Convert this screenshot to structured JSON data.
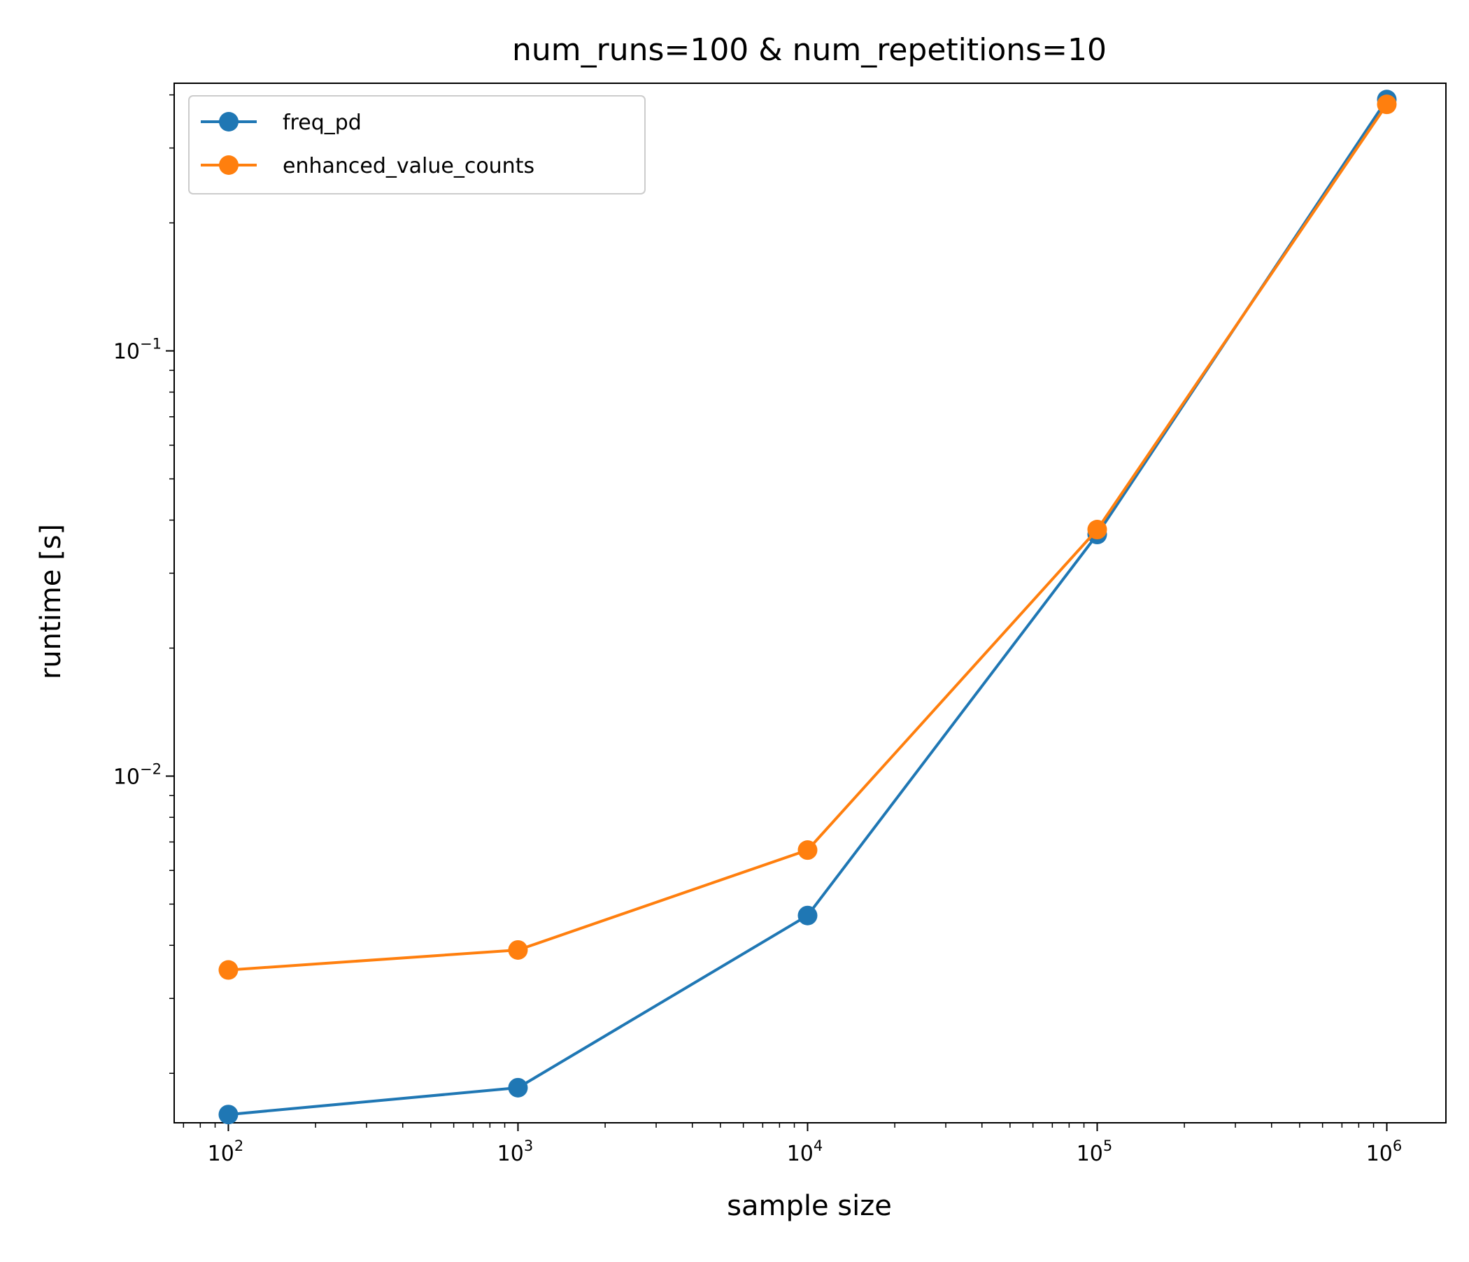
{
  "chart_data": {
    "type": "line",
    "title": "num_runs=100  &  num_repetitions=10",
    "xlabel": "sample size",
    "ylabel": "runtime [s]",
    "xscale": "log",
    "yscale": "log",
    "xlim": [
      65,
      1600000
    ],
    "ylim": [
      0.00153,
      0.426
    ],
    "x": [
      100,
      1000,
      10000,
      100000,
      1000000
    ],
    "x_ticks": [
      {
        "value": 100,
        "base": "10",
        "exp": "2"
      },
      {
        "value": 1000,
        "base": "10",
        "exp": "3"
      },
      {
        "value": 10000,
        "base": "10",
        "exp": "4"
      },
      {
        "value": 100000,
        "base": "10",
        "exp": "5"
      },
      {
        "value": 1000000,
        "base": "10",
        "exp": "6"
      }
    ],
    "y_ticks": [
      {
        "value": 0.01,
        "base": "10",
        "exp": "−2"
      },
      {
        "value": 0.1,
        "base": "10",
        "exp": "−1"
      }
    ],
    "series": [
      {
        "name": "freq_pd",
        "color": "#1f77b4",
        "values": [
          0.0016,
          0.00185,
          0.0047,
          0.037,
          0.39
        ]
      },
      {
        "name": "enhanced_value_counts",
        "color": "#ff7f0e",
        "values": [
          0.0035,
          0.0039,
          0.0067,
          0.038,
          0.38
        ]
      }
    ],
    "grid": false,
    "legend_position": "top-left"
  }
}
